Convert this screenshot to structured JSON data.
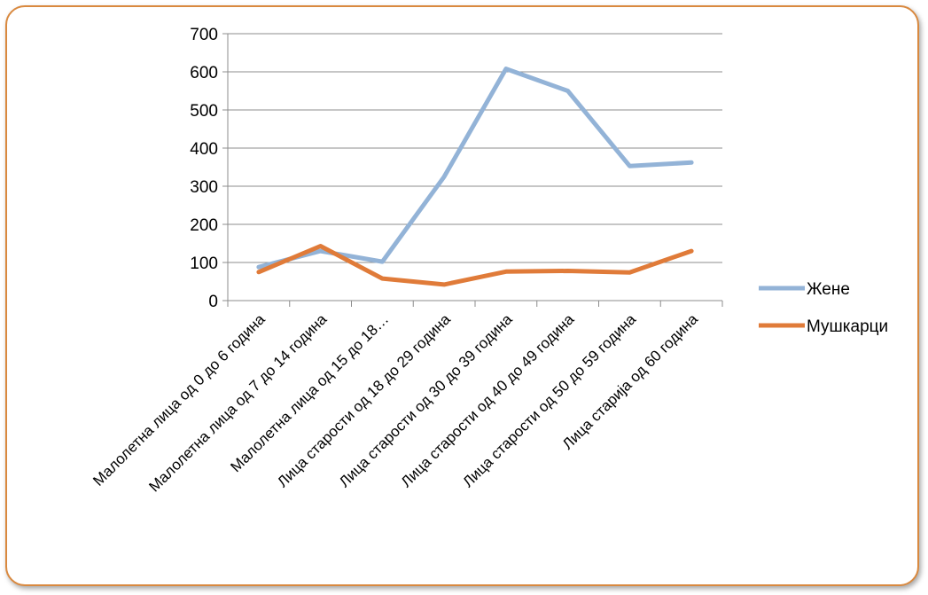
{
  "chart_data": {
    "type": "line",
    "categories": [
      "Малолетна лица од 0 до 6 година",
      "Малолетна лица од 7 до 14 година",
      "Малолетна лица од 15 до 18…",
      "Лица старости од 18 до 29 година",
      "Лица старости од 30 до 39 година",
      "Лица старости од 40 до 49 година",
      "Лица старости од 50 до 59 година",
      "Лица старија од 60 година"
    ],
    "series": [
      {
        "name": "Жене",
        "color": "#93b3d7",
        "values": [
          88,
          130,
          102,
          325,
          608,
          550,
          353,
          362
        ]
      },
      {
        "name": "Мушкарци",
        "color": "#e07b39",
        "values": [
          75,
          143,
          58,
          42,
          76,
          78,
          74,
          130
        ]
      }
    ],
    "ylim": [
      0,
      700
    ],
    "yticks": [
      0,
      100,
      200,
      300,
      400,
      500,
      600,
      700
    ],
    "grid": true,
    "legend": "right",
    "xlabel": "",
    "ylabel": "",
    "title": ""
  }
}
